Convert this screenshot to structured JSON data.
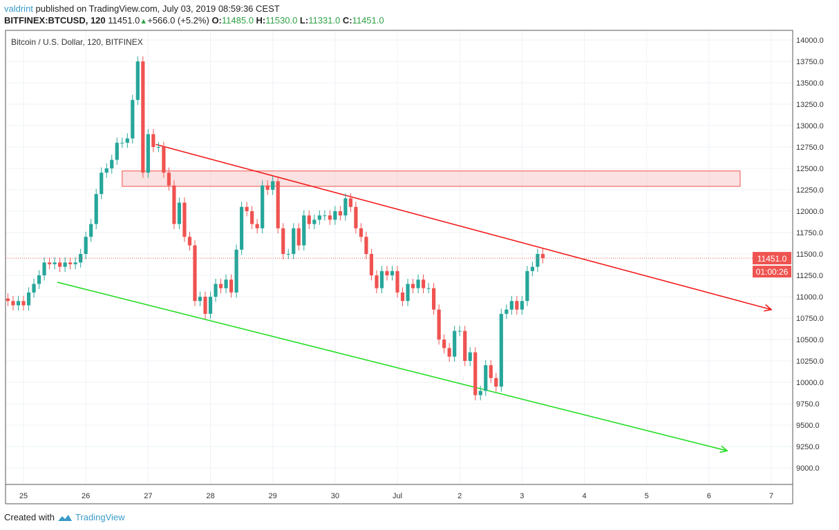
{
  "header": {
    "user": "valdrint",
    "published": "published on TradingView.com, July 03, 2019 08:59:36 CEST",
    "symbol": "BITFINEX:BTCUSD, 120",
    "last": "11451.0",
    "change": "+566.0 (+5.2%)",
    "o_label": "O:",
    "o": "11485.0",
    "h_label": "H:",
    "h": "11530.0",
    "l_label": "L:",
    "l": "11331.0",
    "c_label": "C:",
    "c": "11451.0"
  },
  "chart_data": {
    "type": "candlestick",
    "title": "Bitcoin / U.S. Dollar, 120, BITFINEX",
    "interval_minutes": 120,
    "first_candle": "2019-06-24 18:00",
    "closes": [
      10950,
      10900,
      10950,
      10900,
      11050,
      11150,
      11250,
      11400,
      11380,
      11400,
      11350,
      11400,
      11380,
      11400,
      11500,
      11700,
      11850,
      12200,
      12450,
      12500,
      12600,
      12800,
      12800,
      12850,
      13300,
      13750,
      12450,
      12900,
      12750,
      12750,
      12450,
      12300,
      11850,
      12100,
      11700,
      11600,
      10950,
      11000,
      10800,
      11000,
      11150,
      11100,
      11200,
      11050,
      11550,
      12050,
      12000,
      11850,
      11800,
      12300,
      12250,
      12350,
      11800,
      11500,
      11500,
      11800,
      11600,
      11950,
      11850,
      11900,
      11950,
      11950,
      11900,
      12000,
      11950,
      12150,
      12050,
      11800,
      11700,
      11500,
      11250,
      11100,
      11300,
      11250,
      11300,
      11050,
      10950,
      11150,
      11100,
      11200,
      11100,
      11100,
      10850,
      10500,
      10400,
      10300,
      10600,
      10600,
      10250,
      10350,
      9850,
      9900,
      10200,
      10050,
      9950,
      10800,
      10850,
      10950,
      10850,
      10950,
      11300,
      11350,
      11500,
      11451
    ],
    "first_open": 10980,
    "ylim": [
      8800,
      14150
    ],
    "y_ticks": [
      "14000.0",
      "13750.0",
      "13500.0",
      "13250.0",
      "13000.0",
      "12750.0",
      "12500.0",
      "12250.0",
      "12000.0",
      "11750.0",
      "11500.0",
      "11250.0",
      "11000.0",
      "10750.0",
      "10500.0",
      "10250.0",
      "10000.0",
      "9750.0",
      "9500.0",
      "9250.0",
      "9000.0"
    ],
    "x_ticks": [
      "25",
      "26",
      "27",
      "28",
      "29",
      "30",
      "Jul",
      "2",
      "3",
      "4",
      "5",
      "6",
      "7"
    ],
    "last_price_label": "11451.0",
    "countdown_label": "01:00:26",
    "grid": true,
    "colors": {
      "up": "#26a69a",
      "down": "#ef5350",
      "resistance": "#f01818",
      "support": "#22dd22",
      "zone": "#f7c9c9"
    },
    "drawings": {
      "resistance_line": {
        "from": [
          "2019-06-27 03:00",
          12780
        ],
        "to": [
          "2019-07-07 00:00",
          10850
        ]
      },
      "support_line": {
        "from": [
          "2019-06-25 13:00",
          11170
        ],
        "to": [
          "2019-07-06 07:00",
          9200
        ]
      },
      "resistance_zone": {
        "from": "2019-06-26 14:00",
        "to": "2019-07-06 12:00",
        "top": 12470,
        "bottom": 12290
      }
    }
  },
  "footer": {
    "created_with": "Created with",
    "brand": "TradingView"
  }
}
